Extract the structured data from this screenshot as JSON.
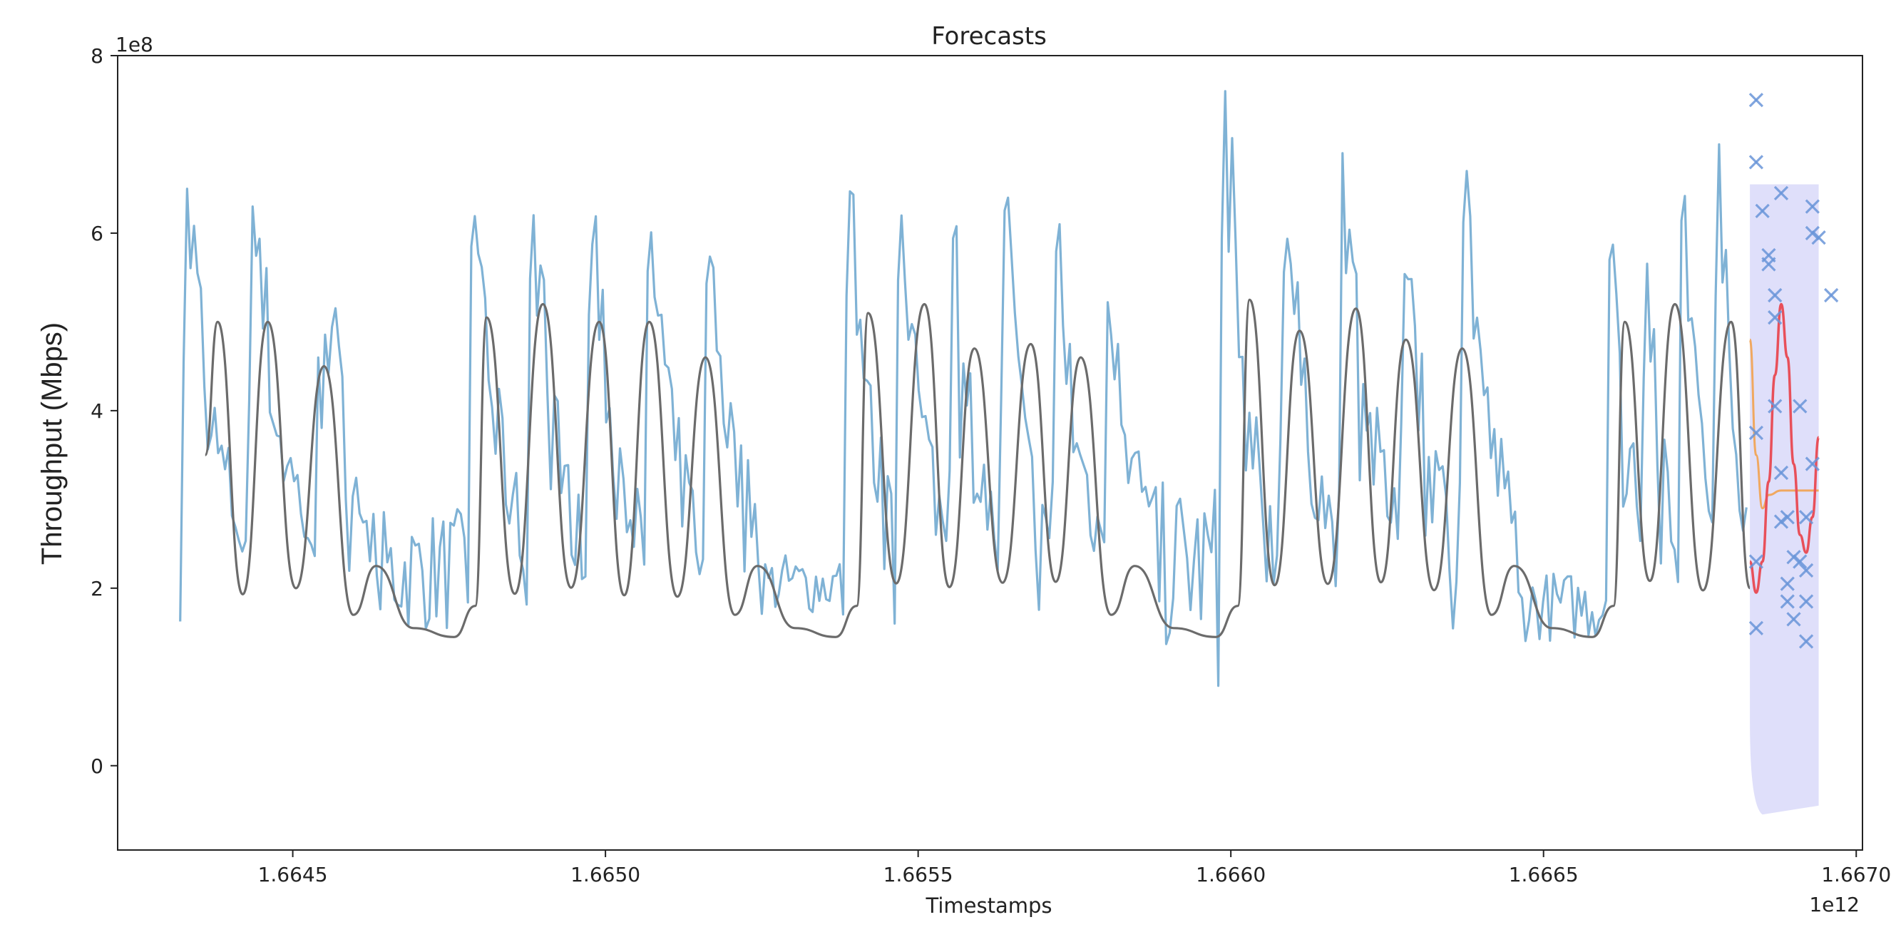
{
  "chart_data": {
    "type": "line",
    "title": "Forecasts",
    "xlabel": "Timestamps",
    "ylabel": "Throughput (Mbps)",
    "x_offset_label": "1e12",
    "y_offset_label": "1e8",
    "xlim": [
      1.66422,
      1.66701
    ],
    "ylim": [
      -0.95,
      8.0
    ],
    "x_ticks": [
      1.6645,
      1.665,
      1.6655,
      1.666,
      1.6665,
      1.667
    ],
    "x_tick_labels": [
      "1.6645",
      "1.6650",
      "1.6655",
      "1.6660",
      "1.6665",
      "1.6670"
    ],
    "y_ticks": [
      0,
      2,
      4,
      6,
      8
    ],
    "y_tick_labels": [
      "0",
      "2",
      "4",
      "6",
      "8"
    ],
    "grid": false,
    "legend": null,
    "colors": {
      "observed": "#7fb2d5",
      "smoothed": "#6b6b6b",
      "forecast_red": "#e8505a",
      "forecast_orange": "#f0a860",
      "band": "#c9c9f7",
      "markers": "#6a95d8"
    },
    "segments": [
      {
        "x0": 1.66432,
        "x1": 1.66464,
        "peaks": 3,
        "hi": [
          6.5,
          6.3,
          6.0
        ],
        "lo": [
          1.3,
          1.4,
          1.4
        ]
      },
      {
        "x0": 1.66464,
        "x1": 1.66478,
        "peaks": 0,
        "hi": [
          2.9
        ],
        "lo": [
          1.1
        ]
      },
      {
        "x0": 1.66478,
        "x1": 1.66525,
        "peaks": 5,
        "hi": [
          6.7,
          6.8,
          6.3,
          6.1,
          6.1
        ],
        "lo": [
          1.2,
          1.1,
          1.3,
          1.3,
          1.4
        ]
      },
      {
        "x0": 1.66525,
        "x1": 1.66538,
        "peaks": 0,
        "hi": [
          2.4
        ],
        "lo": [
          1.3
        ]
      },
      {
        "x0": 1.66538,
        "x1": 1.66588,
        "peaks": 6,
        "hi": [
          7.1,
          6.9,
          6.5,
          6.4,
          6.1,
          6.2
        ],
        "lo": [
          1.2,
          1.3,
          1.2,
          1.0,
          1.3,
          1.4
        ]
      },
      {
        "x0": 1.66588,
        "x1": 1.66598,
        "peaks": 0,
        "hi": [
          3.2
        ],
        "lo": [
          0.9
        ]
      },
      {
        "x0": 1.66598,
        "x1": 1.66646,
        "peaks": 5,
        "hi": [
          7.6,
          6.6,
          6.9,
          6.4,
          6.7
        ],
        "lo": [
          0.9,
          1.2,
          1.3,
          1.2,
          1.3
        ]
      },
      {
        "x0": 1.66646,
        "x1": 1.6666,
        "peaks": 0,
        "hi": [
          2.2
        ],
        "lo": [
          1.0
        ]
      },
      {
        "x0": 1.6666,
        "x1": 1.66683,
        "peaks": 4,
        "hi": [
          6.9,
          6.5,
          7.3,
          7.0
        ],
        "lo": [
          1.3,
          1.4,
          1.5,
          1.5
        ]
      }
    ],
    "smoothed_peaks": [
      {
        "x": 1.66438,
        "y": 5.0
      },
      {
        "x": 1.66446,
        "y": 5.0
      },
      {
        "x": 1.66455,
        "y": 4.5
      },
      {
        "x": 1.66481,
        "y": 5.05
      },
      {
        "x": 1.6649,
        "y": 5.2
      },
      {
        "x": 1.66499,
        "y": 5.0
      },
      {
        "x": 1.66507,
        "y": 5.0
      },
      {
        "x": 1.66516,
        "y": 4.6
      },
      {
        "x": 1.66542,
        "y": 5.1
      },
      {
        "x": 1.66551,
        "y": 5.2
      },
      {
        "x": 1.66559,
        "y": 4.7
      },
      {
        "x": 1.66568,
        "y": 4.75
      },
      {
        "x": 1.66576,
        "y": 4.6
      },
      {
        "x": 1.66603,
        "y": 5.25
      },
      {
        "x": 1.66611,
        "y": 4.9
      },
      {
        "x": 1.6662,
        "y": 5.15
      },
      {
        "x": 1.66628,
        "y": 4.8
      },
      {
        "x": 1.66637,
        "y": 4.7
      },
      {
        "x": 1.66663,
        "y": 5.0
      },
      {
        "x": 1.66671,
        "y": 5.2
      },
      {
        "x": 1.6668,
        "y": 5.0
      }
    ],
    "forecast_red": [
      {
        "x": 1.66683,
        "y": 2.3
      },
      {
        "x": 1.66684,
        "y": 1.95
      },
      {
        "x": 1.66685,
        "y": 2.3
      },
      {
        "x": 1.66686,
        "y": 3.2
      },
      {
        "x": 1.66687,
        "y": 4.4
      },
      {
        "x": 1.66688,
        "y": 5.2
      },
      {
        "x": 1.66689,
        "y": 4.6
      },
      {
        "x": 1.6669,
        "y": 3.4
      },
      {
        "x": 1.66691,
        "y": 2.6
      },
      {
        "x": 1.66692,
        "y": 2.4
      },
      {
        "x": 1.66693,
        "y": 2.8
      },
      {
        "x": 1.66694,
        "y": 3.7
      }
    ],
    "forecast_orange": [
      {
        "x": 1.66683,
        "y": 4.8
      },
      {
        "x": 1.66684,
        "y": 3.5
      },
      {
        "x": 1.66685,
        "y": 2.9
      },
      {
        "x": 1.66686,
        "y": 3.05
      },
      {
        "x": 1.66688,
        "y": 3.1
      },
      {
        "x": 1.66694,
        "y": 3.1
      }
    ],
    "band": {
      "x0": 1.66683,
      "x1": 1.66694,
      "upper": 6.55,
      "lower": -0.45
    },
    "test_points": [
      {
        "x": 1.66684,
        "y": 7.5
      },
      {
        "x": 1.66684,
        "y": 6.8
      },
      {
        "x": 1.66685,
        "y": 6.25
      },
      {
        "x": 1.66686,
        "y": 5.65
      },
      {
        "x": 1.66686,
        "y": 5.75
      },
      {
        "x": 1.66687,
        "y": 5.3
      },
      {
        "x": 1.66687,
        "y": 5.05
      },
      {
        "x": 1.66688,
        "y": 6.45
      },
      {
        "x": 1.66684,
        "y": 3.75
      },
      {
        "x": 1.66687,
        "y": 4.05
      },
      {
        "x": 1.66688,
        "y": 3.3
      },
      {
        "x": 1.66688,
        "y": 2.75
      },
      {
        "x": 1.66689,
        "y": 2.8
      },
      {
        "x": 1.66689,
        "y": 2.05
      },
      {
        "x": 1.66689,
        "y": 1.85
      },
      {
        "x": 1.6669,
        "y": 2.35
      },
      {
        "x": 1.6669,
        "y": 1.65
      },
      {
        "x": 1.66691,
        "y": 2.3
      },
      {
        "x": 1.66691,
        "y": 4.05
      },
      {
        "x": 1.66692,
        "y": 1.85
      },
      {
        "x": 1.66692,
        "y": 2.2
      },
      {
        "x": 1.66692,
        "y": 1.4
      },
      {
        "x": 1.66693,
        "y": 3.4
      },
      {
        "x": 1.66693,
        "y": 6.3
      },
      {
        "x": 1.66693,
        "y": 6.0
      },
      {
        "x": 1.66694,
        "y": 5.95
      },
      {
        "x": 1.66696,
        "y": 5.3
      },
      {
        "x": 1.66684,
        "y": 1.55
      },
      {
        "x": 1.66684,
        "y": 2.3
      },
      {
        "x": 1.66692,
        "y": 2.8
      }
    ]
  }
}
